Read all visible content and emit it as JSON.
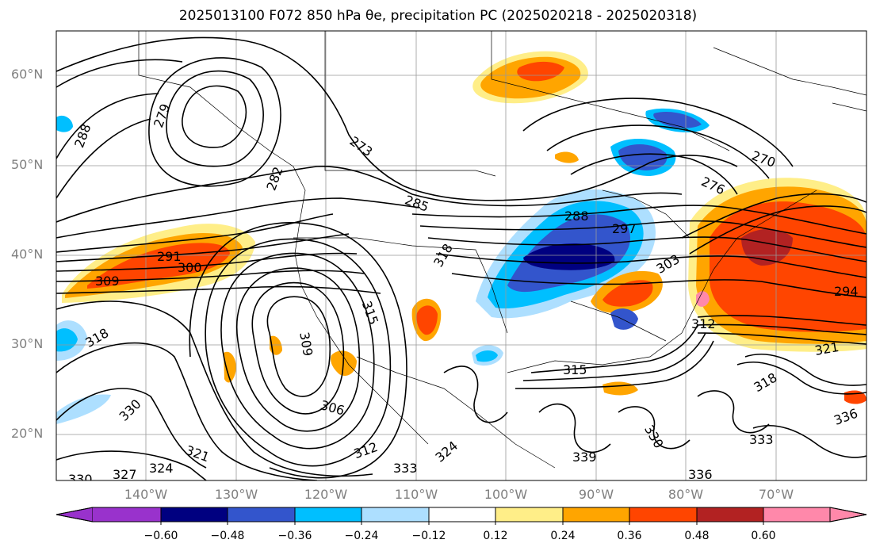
{
  "title": "2025013100 F072 850 hPa θe, precipitation PC (2025020218 - 2025020318)",
  "lat_labels": [
    "60°N",
    "50°N",
    "40°N",
    "30°N",
    "20°N"
  ],
  "lon_labels": [
    "140°W",
    "130°W",
    "120°W",
    "110°W",
    "100°W",
    "90°W",
    "80°W",
    "70°W"
  ],
  "colorbar": {
    "ticks": [
      "−0.60",
      "−0.48",
      "−0.36",
      "−0.24",
      "−0.12",
      "0.12",
      "0.24",
      "0.36",
      "0.48",
      "0.60"
    ],
    "colors": [
      "#9932CC",
      "#000080",
      "#3355CC",
      "#00BFFF",
      "#ADDFFF",
      "#FFFFFF",
      "#FFEE88",
      "#FFA500",
      "#FF4500",
      "#B22222",
      "#FF88AA"
    ]
  },
  "contour_labels": [
    "279",
    "288",
    "273",
    "270",
    "276",
    "285",
    "288",
    "297",
    "291",
    "300",
    "309",
    "318",
    "303",
    "294",
    "312",
    "315",
    "306",
    "309",
    "318",
    "321",
    "330",
    "324",
    "327",
    "330",
    "333",
    "336",
    "339",
    "312",
    "315",
    "318",
    "321",
    "324",
    "330",
    "333",
    "336",
    "282"
  ]
}
